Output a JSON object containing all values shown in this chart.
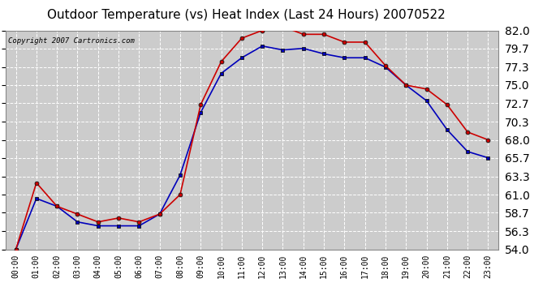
{
  "title": "Outdoor Temperature (vs) Heat Index (Last 24 Hours) 20070522",
  "copyright": "Copyright 2007 Cartronics.com",
  "x_labels": [
    "00:00",
    "01:00",
    "02:00",
    "03:00",
    "04:00",
    "05:00",
    "06:00",
    "07:00",
    "08:00",
    "09:00",
    "10:00",
    "11:00",
    "12:00",
    "13:00",
    "14:00",
    "15:00",
    "16:00",
    "17:00",
    "18:00",
    "19:00",
    "20:00",
    "21:00",
    "22:00",
    "23:00"
  ],
  "temp_blue": [
    54.0,
    60.5,
    59.5,
    57.5,
    57.0,
    57.0,
    57.0,
    58.5,
    63.5,
    71.5,
    76.5,
    78.5,
    80.0,
    79.5,
    79.7,
    79.0,
    78.5,
    78.5,
    77.3,
    75.0,
    73.0,
    69.3,
    66.5,
    65.7
  ],
  "heat_red": [
    54.0,
    62.5,
    59.5,
    58.5,
    57.5,
    58.0,
    57.5,
    58.5,
    61.0,
    72.5,
    78.0,
    81.0,
    82.0,
    82.5,
    81.5,
    81.5,
    80.5,
    80.5,
    77.5,
    75.0,
    74.5,
    72.5,
    69.0,
    68.0
  ],
  "ylim": [
    54.0,
    82.0
  ],
  "yticks": [
    54.0,
    56.3,
    58.7,
    61.0,
    63.3,
    65.7,
    68.0,
    70.3,
    72.7,
    75.0,
    77.3,
    79.7,
    82.0
  ],
  "ytick_labels": [
    "54.0",
    "56.3",
    "58.7",
    "61.0",
    "63.3",
    "65.7",
    "68.0",
    "70.3",
    "72.7",
    "75.0",
    "77.3",
    "79.7",
    "82.0"
  ],
  "blue_color": "#0000bb",
  "red_color": "#cc0000",
  "bg_color": "#ffffff",
  "plot_bg": "#cccccc",
  "grid_color": "#ffffff",
  "title_fontsize": 11,
  "copyright_fontsize": 6.5,
  "tick_fontsize": 7,
  "ytick_fontsize": 7.5
}
